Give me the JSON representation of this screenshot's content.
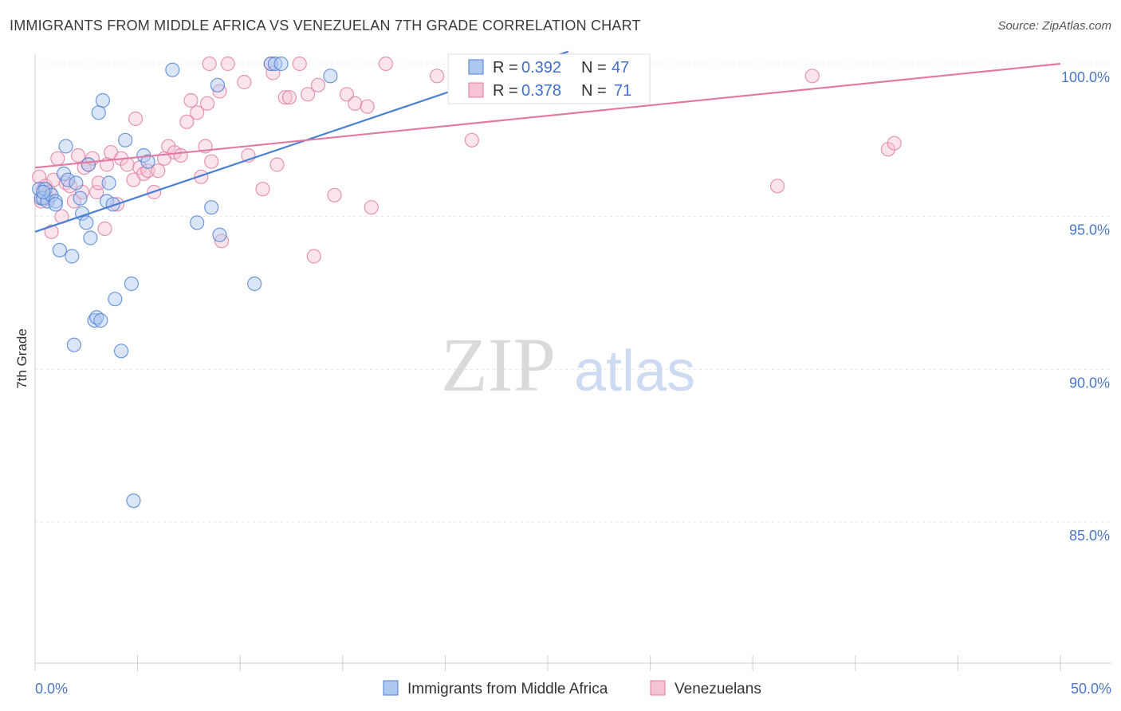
{
  "header": {
    "title": "IMMIGRANTS FROM MIDDLE AFRICA VS VENEZUELAN 7TH GRADE CORRELATION CHART",
    "source": "Source: ZipAtlas.com"
  },
  "watermark": {
    "zip": "ZIP",
    "atlas": "atlas"
  },
  "legend": {
    "r_label": "R =",
    "n_label": "N =",
    "series": [
      {
        "name": "Immigrants from Middle Africa",
        "r": "0.392",
        "n": "47"
      },
      {
        "name": "Venezuelans",
        "r": "0.378",
        "n": "71"
      }
    ]
  },
  "colors": {
    "blue_stroke": "#4a7fd4",
    "blue_fill": "#aec8f0",
    "pink_stroke": "#e07aa0",
    "pink_fill": "#f6c3d5",
    "grid": "#e4e4e4",
    "tick_text": "#4a78c4"
  },
  "chart_data": {
    "type": "scatter",
    "title": "IMMIGRANTS FROM MIDDLE AFRICA VS VENEZUELAN 7TH GRADE CORRELATION CHART",
    "xlabel": "",
    "ylabel": "7th Grade",
    "xlim": [
      0,
      50
    ],
    "ylim": [
      80.5,
      101
    ],
    "x_tick_labels": [
      "0.0%",
      "50.0%"
    ],
    "y_ticks": [
      85,
      90,
      95,
      100
    ],
    "y_tick_labels": [
      "85.0%",
      "90.0%",
      "95.0%",
      "100.0%"
    ],
    "grid": true,
    "series": [
      {
        "name": "Immigrants from Middle Africa",
        "color": "blue",
        "r": 0.392,
        "n": 47,
        "trend": {
          "x": [
            0,
            26
          ],
          "y": [
            94.5,
            100.4
          ]
        },
        "points": [
          [
            0.2,
            95.9
          ],
          [
            0.3,
            95.6
          ],
          [
            0.4,
            95.6
          ],
          [
            0.5,
            95.9
          ],
          [
            0.6,
            95.5
          ],
          [
            0.8,
            95.7
          ],
          [
            1.0,
            95.5
          ],
          [
            1.2,
            93.9
          ],
          [
            1.4,
            96.4
          ],
          [
            1.5,
            97.3
          ],
          [
            1.6,
            96.2
          ],
          [
            1.8,
            93.7
          ],
          [
            1.9,
            90.8
          ],
          [
            2.0,
            96.1
          ],
          [
            2.2,
            95.6
          ],
          [
            2.3,
            95.1
          ],
          [
            2.5,
            94.8
          ],
          [
            2.6,
            96.7
          ],
          [
            2.7,
            94.3
          ],
          [
            2.9,
            91.6
          ],
          [
            3.0,
            91.7
          ],
          [
            3.1,
            98.4
          ],
          [
            3.2,
            91.6
          ],
          [
            3.3,
            98.8
          ],
          [
            3.5,
            95.5
          ],
          [
            3.6,
            96.1
          ],
          [
            3.8,
            95.4
          ],
          [
            3.9,
            92.3
          ],
          [
            4.2,
            90.6
          ],
          [
            4.4,
            97.5
          ],
          [
            4.7,
            92.8
          ],
          [
            4.8,
            85.7
          ],
          [
            5.3,
            97.0
          ],
          [
            5.5,
            96.8
          ],
          [
            6.7,
            99.8
          ],
          [
            7.9,
            94.8
          ],
          [
            8.6,
            95.3
          ],
          [
            8.9,
            99.3
          ],
          [
            9.0,
            94.4
          ],
          [
            10.7,
            92.8
          ],
          [
            11.5,
            100.0
          ],
          [
            11.7,
            100.0
          ],
          [
            12.0,
            100.0
          ],
          [
            14.4,
            99.6
          ],
          [
            25.9,
            100.0
          ],
          [
            0.4,
            95.8
          ],
          [
            1.0,
            95.4
          ]
        ]
      },
      {
        "name": "Venezuelans",
        "color": "pink",
        "r": 0.378,
        "n": 71,
        "trend": {
          "x": [
            0,
            50
          ],
          "y": [
            96.6,
            100.0
          ]
        },
        "points": [
          [
            0.2,
            96.3
          ],
          [
            0.3,
            95.5
          ],
          [
            0.4,
            95.9
          ],
          [
            0.5,
            96.0
          ],
          [
            0.6,
            95.6
          ],
          [
            0.7,
            95.8
          ],
          [
            0.8,
            94.5
          ],
          [
            0.9,
            96.2
          ],
          [
            1.1,
            96.9
          ],
          [
            1.3,
            95.0
          ],
          [
            1.5,
            96.1
          ],
          [
            1.7,
            96.0
          ],
          [
            1.9,
            95.5
          ],
          [
            2.1,
            97.0
          ],
          [
            2.3,
            95.8
          ],
          [
            2.4,
            96.6
          ],
          [
            2.6,
            96.7
          ],
          [
            2.8,
            96.9
          ],
          [
            3.0,
            95.8
          ],
          [
            3.1,
            96.1
          ],
          [
            3.4,
            94.6
          ],
          [
            3.5,
            96.7
          ],
          [
            3.7,
            97.1
          ],
          [
            4.0,
            95.4
          ],
          [
            4.2,
            96.9
          ],
          [
            4.5,
            96.7
          ],
          [
            4.8,
            96.2
          ],
          [
            4.9,
            98.2
          ],
          [
            5.1,
            96.6
          ],
          [
            5.3,
            96.4
          ],
          [
            5.5,
            96.5
          ],
          [
            5.8,
            95.8
          ],
          [
            6.0,
            96.5
          ],
          [
            6.3,
            96.9
          ],
          [
            6.5,
            97.3
          ],
          [
            6.8,
            97.1
          ],
          [
            7.1,
            97.0
          ],
          [
            7.4,
            98.1
          ],
          [
            7.6,
            98.8
          ],
          [
            7.9,
            98.4
          ],
          [
            8.1,
            96.3
          ],
          [
            8.3,
            97.3
          ],
          [
            8.4,
            98.7
          ],
          [
            8.6,
            96.8
          ],
          [
            9.0,
            99.1
          ],
          [
            9.1,
            94.2
          ],
          [
            8.5,
            100.0
          ],
          [
            9.4,
            100.0
          ],
          [
            10.2,
            99.4
          ],
          [
            10.4,
            97.0
          ],
          [
            11.1,
            95.9
          ],
          [
            11.5,
            100.0
          ],
          [
            11.6,
            99.7
          ],
          [
            11.8,
            96.7
          ],
          [
            12.2,
            98.9
          ],
          [
            12.4,
            98.9
          ],
          [
            12.9,
            100.0
          ],
          [
            13.3,
            99.0
          ],
          [
            13.8,
            99.3
          ],
          [
            13.6,
            93.7
          ],
          [
            14.6,
            95.7
          ],
          [
            15.2,
            99.0
          ],
          [
            15.6,
            98.7
          ],
          [
            16.2,
            98.6
          ],
          [
            16.4,
            95.3
          ],
          [
            17.1,
            100.0
          ],
          [
            19.6,
            99.6
          ],
          [
            21.3,
            97.5
          ],
          [
            36.2,
            96.0
          ],
          [
            37.9,
            99.6
          ],
          [
            41.6,
            97.2
          ],
          [
            41.9,
            97.4
          ]
        ]
      }
    ]
  }
}
